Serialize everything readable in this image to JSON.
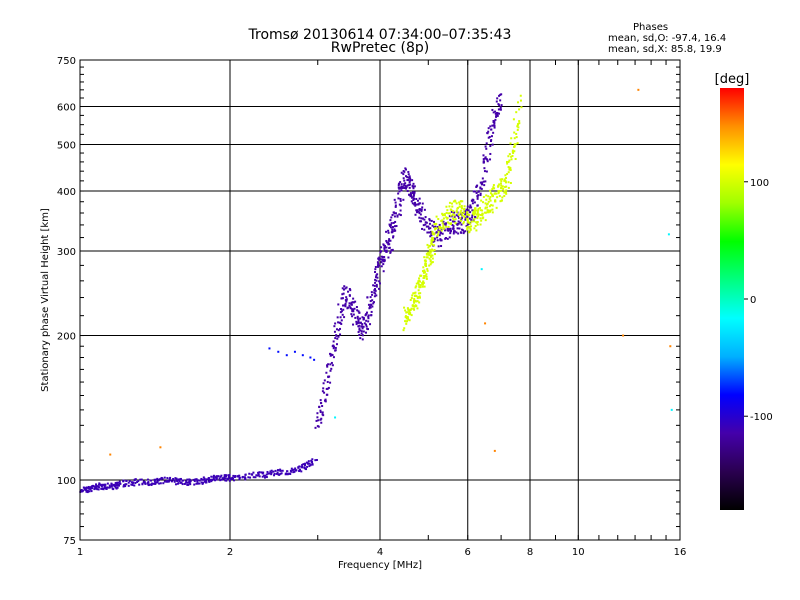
{
  "header": {
    "title_line1": "Tromsø 20130614 07:34:00–07:35:43",
    "title_line2": "RwPretec (8p)",
    "stats_heading": "Phases",
    "stats_o": "mean, sd,O: -97.4, 16.4",
    "stats_x": "mean, sd,X: 85.8, 19.9"
  },
  "colorbar": {
    "label": "[deg]",
    "ticks": [
      "100",
      "0",
      "-100"
    ],
    "tick_values": [
      100,
      0,
      -100
    ],
    "range": [
      -180,
      180
    ],
    "colormap": [
      "#000000",
      "#2a0050",
      "#4400aa",
      "#0000ff",
      "#00b0ff",
      "#00ffff",
      "#00ff80",
      "#00ff00",
      "#a0ff00",
      "#ffff00",
      "#ff9000",
      "#ff0000"
    ]
  },
  "chart_data": {
    "type": "scatter",
    "title": "Tromsø 20130614 07:34:00–07:35:43",
    "subtitle": "RwPretec (8p)",
    "xlabel": "Frequency [MHz]",
    "ylabel": "Stationary phase Virtual Height [km]",
    "xscale": "log",
    "yscale": "log",
    "xlim": [
      1,
      16
    ],
    "ylim": [
      75,
      750
    ],
    "xticks": [
      1,
      2,
      4,
      6,
      8,
      10,
      16
    ],
    "xtick_labels": [
      "1",
      "2",
      "4",
      "6",
      "8",
      "10",
      "16"
    ],
    "yticks": [
      75,
      100,
      200,
      300,
      400,
      500,
      600,
      750
    ],
    "ytick_labels": [
      "75",
      "100",
      "200",
      "300",
      "400",
      "500",
      "600",
      "750"
    ],
    "grid": true,
    "color_encoding": "phase [deg]",
    "series": [
      {
        "phase_deg": -110,
        "x": [
          1.0,
          1.05,
          1.1,
          1.15,
          1.2,
          1.3,
          1.4,
          1.5,
          1.6,
          1.7,
          1.8,
          1.9,
          2.0,
          2.2,
          2.4,
          2.6,
          2.8,
          2.95
        ],
        "y": [
          95,
          96,
          97,
          97,
          98,
          99,
          99,
          100,
          99,
          99,
          100,
          101,
          101,
          102,
          103,
          104,
          106,
          109
        ]
      },
      {
        "phase_deg": -80,
        "x": [
          2.4,
          2.5,
          2.6,
          2.7,
          2.8,
          2.9,
          2.95
        ],
        "y": [
          188,
          185,
          182,
          185,
          182,
          180,
          178
        ]
      },
      {
        "phase_deg": -115,
        "x": [
          3.0,
          3.1,
          3.2,
          3.3,
          3.4,
          3.5,
          3.6,
          3.7,
          3.8,
          3.9,
          4.0,
          4.1,
          4.2,
          4.3,
          4.4,
          4.5,
          4.6,
          4.7,
          4.8,
          5.0,
          5.2,
          5.4,
          5.6,
          5.8,
          6.0,
          6.2,
          6.4,
          6.6,
          6.8,
          7.0
        ],
        "y": [
          130,
          150,
          180,
          210,
          245,
          235,
          215,
          205,
          225,
          250,
          285,
          300,
          320,
          350,
          400,
          430,
          410,
          390,
          360,
          340,
          320,
          330,
          345,
          340,
          350,
          370,
          420,
          500,
          560,
          620
        ]
      },
      {
        "phase_deg": 100,
        "x": [
          4.5,
          4.6,
          4.7,
          4.8,
          4.9,
          5.0,
          5.1,
          5.2,
          5.4,
          5.6,
          5.8,
          6.0,
          6.2,
          6.4,
          6.6,
          6.8,
          7.0,
          7.2,
          7.4,
          7.6
        ],
        "y": [
          215,
          225,
          240,
          255,
          270,
          290,
          300,
          335,
          350,
          360,
          365,
          340,
          350,
          360,
          375,
          390,
          400,
          420,
          480,
          600
        ]
      },
      {
        "phase_deg": 150,
        "x": [
          1.15,
          1.45,
          6.5,
          6.8,
          12.3,
          13.2,
          15.3
        ],
        "y": [
          113,
          117,
          212,
          115,
          200,
          650,
          190
        ]
      },
      {
        "phase_deg": -20,
        "x": [
          3.25,
          6.4,
          15.2,
          15.4
        ],
        "y": [
          135,
          275,
          325,
          140
        ]
      }
    ]
  }
}
